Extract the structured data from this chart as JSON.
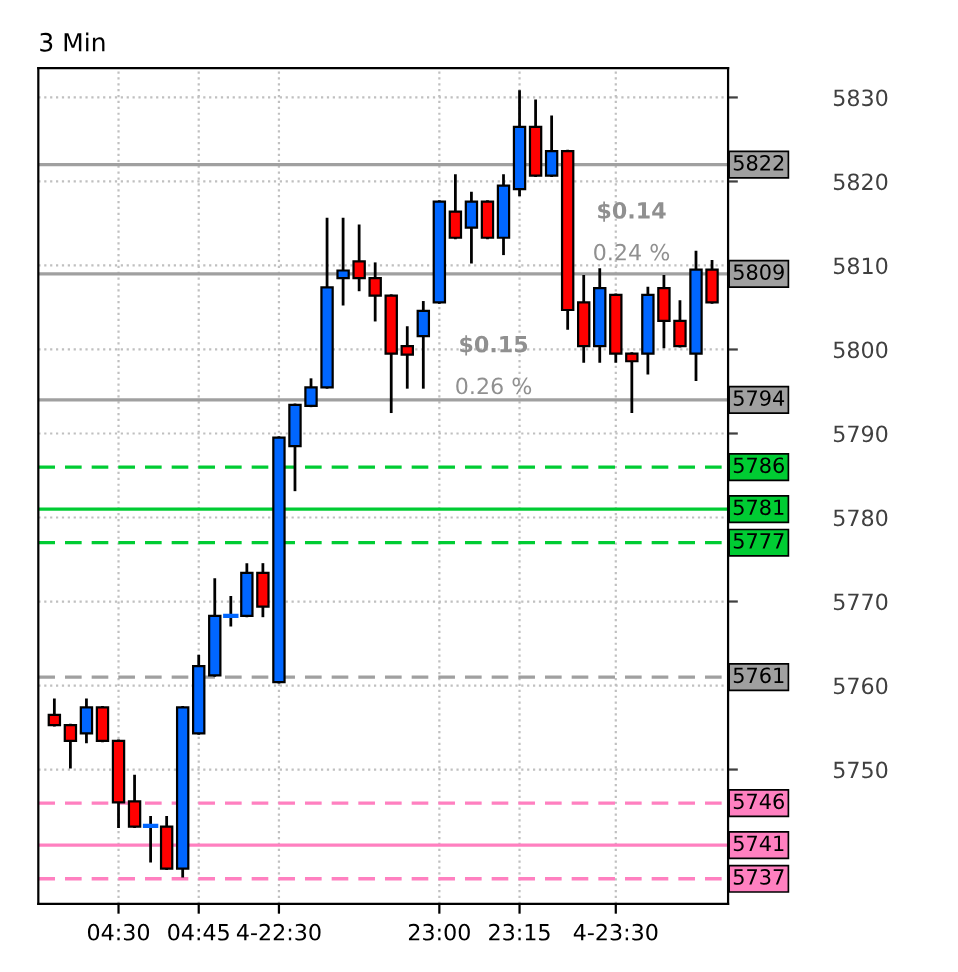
{
  "chart_data": {
    "type": "candlestick",
    "title": "3 Min",
    "categories": [
      null,
      null,
      null,
      null,
      "04:30",
      null,
      null,
      null,
      null,
      "04:45",
      null,
      null,
      null,
      null,
      "4-22:30",
      null,
      null,
      null,
      null,
      null,
      null,
      null,
      null,
      null,
      "23:00",
      null,
      null,
      null,
      null,
      "23:15",
      null,
      null,
      null,
      null,
      null,
      "4-23:30",
      null,
      null,
      null,
      null,
      null,
      null
    ],
    "ohlc": [
      [
        5756.5,
        5758.3,
        5755.3,
        5755.3
      ],
      [
        5755.3,
        5755.3,
        5750.3,
        5753.4
      ],
      [
        5754.3,
        5758.3,
        5753.3,
        5757.4
      ],
      [
        5757.4,
        5757.4,
        5753.4,
        5753.4
      ],
      [
        5753.4,
        5753.4,
        5743.2,
        5746.1
      ],
      [
        5746.2,
        5749.2,
        5743.2,
        5743.2
      ],
      [
        5743.3,
        5744.3,
        5739.1,
        5743.3
      ],
      [
        5743.2,
        5744.3,
        5738.2,
        5738.2
      ],
      [
        5738.2,
        5757.4,
        5737.3,
        5757.4
      ],
      [
        5754.3,
        5763.5,
        5754.3,
        5762.3
      ],
      [
        5761.2,
        5772.6,
        5761.2,
        5768.3
      ],
      [
        5768.3,
        5770.5,
        5767.2,
        5768.3
      ],
      [
        5768.3,
        5774.4,
        5768.3,
        5773.4
      ],
      [
        5773.4,
        5774.4,
        5768.3,
        5769.4
      ],
      [
        5760.4,
        5789.5,
        5760.4,
        5789.5
      ],
      [
        5788.5,
        5793.4,
        5783.3,
        5793.4
      ],
      [
        5793.3,
        5796.4,
        5793.3,
        5795.5
      ],
      [
        5795.5,
        5815.5,
        5795.5,
        5807.4
      ],
      [
        5808.5,
        5815.5,
        5805.4,
        5809.4
      ],
      [
        5810.5,
        5814.7,
        5807.1,
        5808.5
      ],
      [
        5808.5,
        5810.2,
        5803.5,
        5806.4
      ],
      [
        5806.4,
        5806.4,
        5792.6,
        5799.5
      ],
      [
        5800.4,
        5802.6,
        5795.5,
        5799.4
      ],
      [
        5801.6,
        5805.6,
        5795.5,
        5804.6
      ],
      [
        5805.6,
        5817.6,
        5805.6,
        5817.6
      ],
      [
        5816.4,
        5820.7,
        5813.3,
        5813.3
      ],
      [
        5814.5,
        5818.6,
        5810.4,
        5817.6
      ],
      [
        5817.6,
        5817.6,
        5813.3,
        5813.3
      ],
      [
        5813.3,
        5820.7,
        5811.4,
        5819.5
      ],
      [
        5819.1,
        5830.7,
        5818.4,
        5826.5
      ],
      [
        5826.5,
        5829.6,
        5820.7,
        5820.7
      ],
      [
        5820.7,
        5827.7,
        5820.7,
        5823.6
      ],
      [
        5823.6,
        5823.6,
        5802.5,
        5804.7
      ],
      [
        5805.6,
        5808.7,
        5798.6,
        5800.4
      ],
      [
        5800.4,
        5809.5,
        5798.6,
        5807.3
      ],
      [
        5806.5,
        5806.5,
        5798.6,
        5799.5
      ],
      [
        5799.5,
        5799.5,
        5792.6,
        5798.6
      ],
      [
        5799.5,
        5807.3,
        5797.2,
        5806.5
      ],
      [
        5807.3,
        5808.7,
        5800.3,
        5803.4
      ],
      [
        5803.4,
        5805.7,
        5800.4,
        5800.4
      ],
      [
        5799.5,
        5811.6,
        5796.4,
        5809.5
      ],
      [
        5809.5,
        5810.5,
        5805.6,
        5805.6
      ]
    ],
    "colors": [
      "#ff0000",
      "#ff0000",
      "#0066ff",
      "#ff0000",
      "#ff0000",
      "#ff0000",
      "#0066ff",
      "#ff0000",
      "#0066ff",
      "#0066ff",
      "#0066ff",
      "#0066ff",
      "#0066ff",
      "#ff0000",
      "#0066ff",
      "#0066ff",
      "#0066ff",
      "#0066ff",
      "#0066ff",
      "#ff0000",
      "#ff0000",
      "#ff0000",
      "#ff0000",
      "#0066ff",
      "#0066ff",
      "#ff0000",
      "#0066ff",
      "#ff0000",
      "#0066ff",
      "#0066ff",
      "#ff0000",
      "#0066ff",
      "#ff0000",
      "#ff0000",
      "#0066ff",
      "#ff0000",
      "#ff0000",
      "#0066ff",
      "#ff0000",
      "#ff0000",
      "#0066ff",
      "#ff0000"
    ],
    "ylim": [
      5734,
      5833.5
    ],
    "yticks": [
      5750,
      5760,
      5770,
      5780,
      5790,
      5800,
      5810,
      5820,
      5830
    ],
    "grid": true,
    "ref_lines": [
      {
        "axis": "y",
        "value": 5822,
        "label": "5822",
        "color": "#a0a0a0",
        "line_style": "solid"
      },
      {
        "axis": "y",
        "value": 5809,
        "label": "5809",
        "color": "#a0a0a0",
        "line_style": "solid"
      },
      {
        "axis": "y",
        "value": 5794,
        "label": "5794",
        "color": "#a0a0a0",
        "line_style": "solid"
      },
      {
        "axis": "y",
        "value": 5786,
        "label": "5786",
        "color": "#00cc33",
        "line_style": "dashed"
      },
      {
        "axis": "y",
        "value": 5781,
        "label": "5781",
        "color": "#00cc33",
        "line_style": "solid"
      },
      {
        "axis": "y",
        "value": 5777,
        "label": "5777",
        "color": "#00cc33",
        "line_style": "dashed"
      },
      {
        "axis": "y",
        "value": 5761,
        "label": "5761",
        "color": "#a0a0a0",
        "line_style": "dashed"
      },
      {
        "axis": "y",
        "value": 5746,
        "label": "5746",
        "color": "#ff80c0",
        "line_style": "dashed"
      },
      {
        "axis": "y",
        "value": 5741,
        "label": "5741",
        "color": "#ff80c0",
        "line_style": "solid"
      },
      {
        "axis": "y",
        "value": 5737,
        "label": "5737",
        "color": "#ff80c0",
        "line_style": "dashed"
      }
    ],
    "annotations": [
      "$0.14",
      "0.24 %",
      "$0.15",
      "0.26 %"
    ]
  }
}
